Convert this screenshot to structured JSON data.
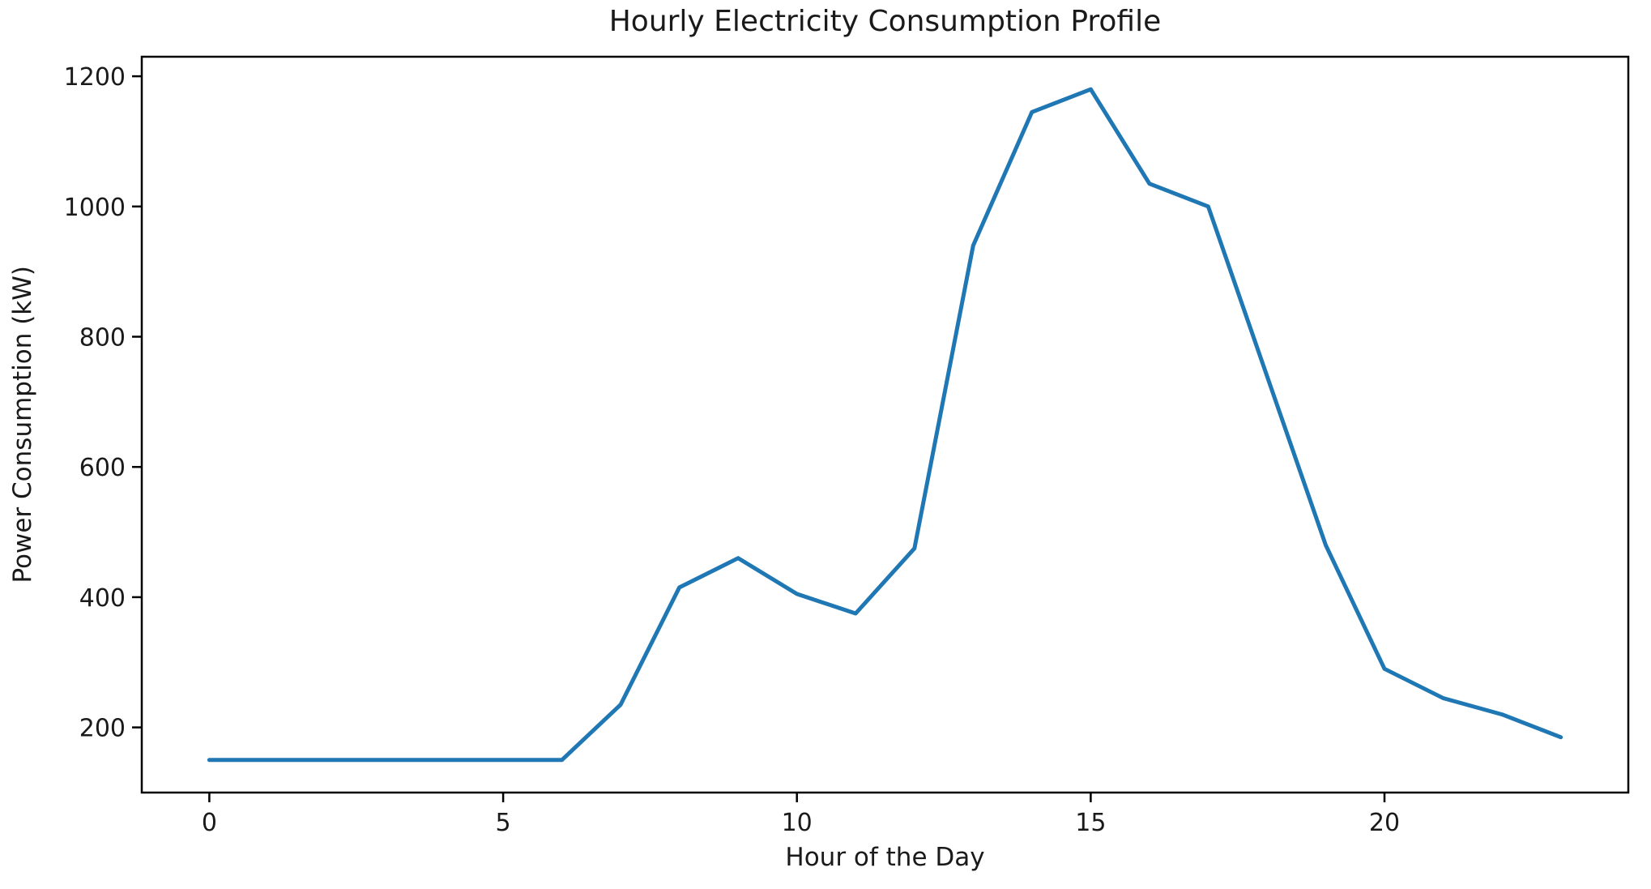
{
  "figure": {
    "background": "#ffffff",
    "text_color": "#1a1a1a",
    "spine_color": "#000000"
  },
  "chart_data": {
    "type": "line",
    "title": "Hourly Electricity Consumption Profile",
    "xlabel": "Hour of the Day",
    "ylabel": "Power Consumption (kW)",
    "x": [
      0,
      1,
      2,
      3,
      4,
      5,
      6,
      7,
      8,
      9,
      10,
      11,
      12,
      13,
      14,
      15,
      16,
      17,
      18,
      19,
      20,
      21,
      22,
      23
    ],
    "values": [
      150,
      150,
      150,
      150,
      150,
      150,
      150,
      235,
      415,
      460,
      405,
      375,
      475,
      940,
      1145,
      1180,
      1035,
      1000,
      740,
      480,
      290,
      245,
      220,
      185
    ],
    "series_name": "Power Consumption",
    "line_color": "#1f77b4",
    "line_width": 5,
    "xlim": [
      -1.15,
      24.15
    ],
    "ylim": [
      100,
      1230
    ],
    "xticks": [
      0,
      5,
      10,
      15,
      20
    ],
    "yticks": [
      200,
      400,
      600,
      800,
      1000,
      1200
    ],
    "grid": false,
    "legend": false
  }
}
